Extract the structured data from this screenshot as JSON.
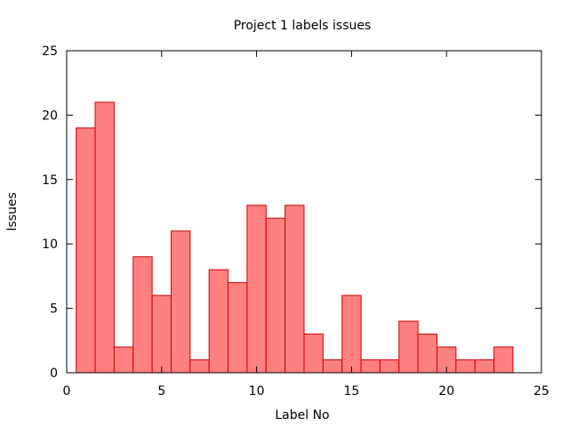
{
  "chart_data": {
    "type": "bar",
    "title": "Project 1 labels issues",
    "xlabel": "Label No",
    "ylabel": "Issues",
    "xlim": [
      0,
      25
    ],
    "ylim": [
      0,
      25
    ],
    "xticks": [
      0,
      5,
      10,
      15,
      20,
      25
    ],
    "yticks": [
      0,
      5,
      10,
      15,
      20,
      25
    ],
    "bar_width": 1,
    "grid": false,
    "legend": "none",
    "bar_fill": "#ff8080",
    "bar_stroke": "#cc0000",
    "x": [
      1,
      2,
      3,
      4,
      5,
      6,
      7,
      8,
      9,
      10,
      11,
      12,
      13,
      14,
      15,
      16,
      17,
      18,
      19,
      20,
      21,
      22,
      23
    ],
    "values": [
      19,
      21,
      2,
      9,
      6,
      11,
      1,
      8,
      7,
      13,
      12,
      13,
      3,
      1,
      6,
      1,
      1,
      4,
      3,
      2,
      1,
      1,
      2
    ]
  }
}
